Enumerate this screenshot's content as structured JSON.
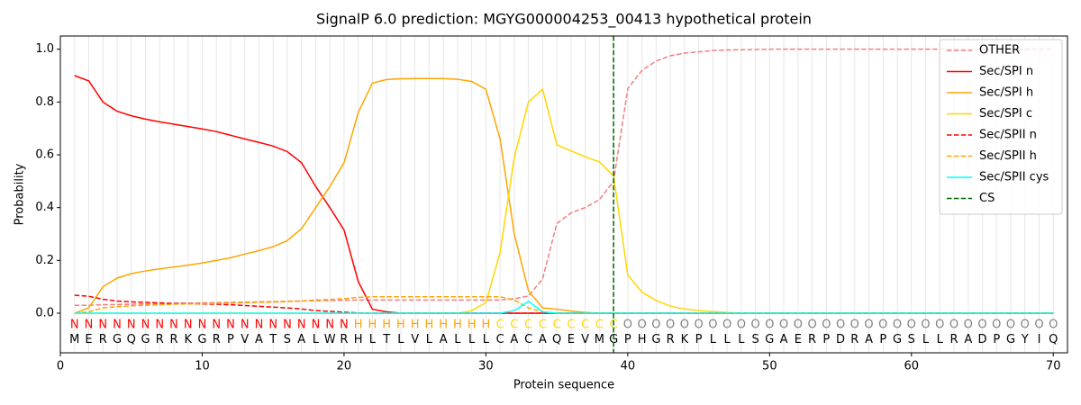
{
  "chart_data": {
    "type": "line",
    "title": "SignalP 6.0 prediction: MGYG000004253_00413 hypothetical protein",
    "xlabel": "Protein sequence",
    "ylabel": "Probability",
    "xlim": [
      0,
      71
    ],
    "ylim": [
      -0.15,
      1.05
    ],
    "xticks": [
      0,
      10,
      20,
      30,
      40,
      50,
      60,
      70
    ],
    "yticks": [
      {
        "value": 0,
        "label": "0.0"
      },
      0.2,
      0.4,
      0.6,
      0.8,
      {
        "value": 1,
        "label": "1.0"
      }
    ],
    "grid": "x-minor",
    "legend": "upper right",
    "x": [
      1,
      2,
      3,
      4,
      5,
      6,
      7,
      8,
      9,
      10,
      11,
      12,
      13,
      14,
      15,
      16,
      17,
      18,
      19,
      20,
      21,
      22,
      23,
      24,
      25,
      26,
      27,
      28,
      29,
      30,
      31,
      32,
      33,
      34,
      35,
      36,
      37,
      38,
      39,
      40,
      41,
      42,
      43,
      44,
      45,
      46,
      47,
      48,
      49,
      50,
      51,
      52,
      53,
      54,
      55,
      56,
      57,
      58,
      59,
      60,
      61,
      62,
      63,
      64,
      65,
      66,
      67,
      68,
      69,
      70
    ],
    "sequence": [
      "M",
      "E",
      "R",
      "G",
      "Q",
      "G",
      "R",
      "R",
      "K",
      "G",
      "R",
      "P",
      "V",
      "A",
      "T",
      "S",
      "A",
      "L",
      "W",
      "R",
      "H",
      "L",
      "T",
      "L",
      "V",
      "L",
      "A",
      "L",
      "L",
      "L",
      "C",
      "A",
      "C",
      "A",
      "Q",
      "E",
      "V",
      "M",
      "G",
      "P",
      "H",
      "G",
      "R",
      "K",
      "P",
      "L",
      "L",
      "L",
      "S",
      "G",
      "A",
      "E",
      "R",
      "P",
      "D",
      "R",
      "A",
      "P",
      "G",
      "S",
      "L",
      "L",
      "R",
      "A",
      "D",
      "P",
      "G",
      "Y",
      "I",
      "Q"
    ],
    "regions": [
      "N",
      "N",
      "N",
      "N",
      "N",
      "N",
      "N",
      "N",
      "N",
      "N",
      "N",
      "N",
      "N",
      "N",
      "N",
      "N",
      "N",
      "N",
      "N",
      "N",
      "H",
      "H",
      "H",
      "H",
      "H",
      "H",
      "H",
      "H",
      "H",
      "H",
      "C",
      "C",
      "C",
      "C",
      "C",
      "C",
      "C",
      "C",
      "C",
      "O",
      "O",
      "O",
      "O",
      "O",
      "O",
      "O",
      "O",
      "O",
      "O",
      "O",
      "O",
      "O",
      "O",
      "O",
      "O",
      "O",
      "O",
      "O",
      "O",
      "O",
      "O",
      "O",
      "O",
      "O",
      "O",
      "O",
      "O",
      "O",
      "O",
      "O"
    ],
    "region_colors": {
      "N": "#ff0000",
      "H": "#ffa500",
      "C": "#ffd700",
      "O": "#808080"
    },
    "series": [
      {
        "name": "OTHER",
        "color": "#f08080",
        "linestyle": "dashed",
        "values": [
          0.03,
          0.03,
          0.032,
          0.033,
          0.034,
          0.035,
          0.036,
          0.037,
          0.038,
          0.039,
          0.04,
          0.041,
          0.042,
          0.043,
          0.044,
          0.045,
          0.046,
          0.047,
          0.048,
          0.049,
          0.05,
          0.05,
          0.05,
          0.05,
          0.05,
          0.05,
          0.05,
          0.05,
          0.05,
          0.05,
          0.05,
          0.055,
          0.065,
          0.13,
          0.34,
          0.38,
          0.4,
          0.43,
          0.5,
          0.85,
          0.92,
          0.955,
          0.975,
          0.985,
          0.99,
          0.995,
          0.997,
          0.998,
          0.999,
          1,
          1,
          1,
          1,
          1,
          1,
          1,
          1,
          1,
          1,
          1,
          1,
          1,
          1,
          1,
          1,
          1,
          1,
          1,
          1,
          1
        ]
      },
      {
        "name": "Sec/SPI n",
        "color": "#ff0000",
        "linestyle": "solid",
        "values": [
          0.9,
          0.88,
          0.8,
          0.765,
          0.748,
          0.735,
          0.725,
          0.716,
          0.707,
          0.698,
          0.688,
          0.674,
          0.66,
          0.647,
          0.633,
          0.612,
          0.57,
          0.48,
          0.4,
          0.315,
          0.12,
          0.015,
          0.005,
          0,
          0,
          0,
          0,
          0,
          0,
          0,
          0,
          0,
          0,
          0,
          0,
          0,
          0,
          0,
          0,
          0,
          0,
          0,
          0,
          0,
          0,
          0,
          0,
          0,
          0,
          0,
          0,
          0,
          0,
          0,
          0,
          0,
          0,
          0,
          0,
          0,
          0,
          0,
          0,
          0,
          0,
          0,
          0,
          0,
          0,
          0
        ]
      },
      {
        "name": "Sec/SPI h",
        "color": "#ffa500",
        "linestyle": "solid",
        "values": [
          0,
          0.02,
          0.1,
          0.133,
          0.15,
          0.16,
          0.168,
          0.175,
          0.182,
          0.19,
          0.2,
          0.21,
          0.224,
          0.237,
          0.252,
          0.275,
          0.32,
          0.4,
          0.48,
          0.57,
          0.76,
          0.872,
          0.885,
          0.888,
          0.889,
          0.889,
          0.889,
          0.886,
          0.878,
          0.848,
          0.66,
          0.3,
          0.085,
          0.02,
          0.015,
          0.008,
          0.003,
          0,
          0,
          0,
          0,
          0,
          0,
          0,
          0,
          0,
          0,
          0,
          0,
          0,
          0,
          0,
          0,
          0,
          0,
          0,
          0,
          0,
          0,
          0,
          0,
          0,
          0,
          0,
          0,
          0,
          0,
          0,
          0,
          0
        ]
      },
      {
        "name": "Sec/SPI c",
        "color": "#ffd700",
        "linestyle": "solid",
        "values": [
          0,
          0,
          0,
          0,
          0,
          0,
          0,
          0,
          0,
          0,
          0,
          0,
          0,
          0,
          0,
          0,
          0,
          0,
          0,
          0,
          0,
          0,
          0,
          0,
          0,
          0,
          0,
          0,
          0.01,
          0.04,
          0.23,
          0.59,
          0.8,
          0.848,
          0.638,
          0.615,
          0.593,
          0.573,
          0.52,
          0.145,
          0.08,
          0.048,
          0.027,
          0.016,
          0.01,
          0.006,
          0.003,
          0,
          0,
          0,
          0,
          0,
          0,
          0,
          0,
          0,
          0,
          0,
          0,
          0,
          0,
          0,
          0,
          0,
          0,
          0,
          0,
          0,
          0,
          0
        ]
      },
      {
        "name": "Sec/SPII n",
        "color": "#ff0000",
        "linestyle": "dashed",
        "values": [
          0.068,
          0.064,
          0.053,
          0.046,
          0.043,
          0.041,
          0.039,
          0.037,
          0.036,
          0.035,
          0.034,
          0.032,
          0.029,
          0.026,
          0.023,
          0.02,
          0.016,
          0.01,
          0.007,
          0.004,
          0.001,
          0,
          0,
          0,
          0,
          0,
          0,
          0,
          0,
          0,
          0,
          0,
          0,
          0,
          0,
          0,
          0,
          0,
          0,
          0,
          0,
          0,
          0,
          0,
          0,
          0,
          0,
          0,
          0,
          0,
          0,
          0,
          0,
          0,
          0,
          0,
          0,
          0,
          0,
          0,
          0,
          0,
          0,
          0,
          0,
          0,
          0,
          0,
          0,
          0
        ]
      },
      {
        "name": "Sec/SPII h",
        "color": "#ffa500",
        "linestyle": "dashed",
        "values": [
          0,
          0.005,
          0.02,
          0.025,
          0.028,
          0.03,
          0.032,
          0.034,
          0.035,
          0.036,
          0.037,
          0.038,
          0.04,
          0.041,
          0.042,
          0.044,
          0.046,
          0.05,
          0.052,
          0.055,
          0.06,
          0.062,
          0.062,
          0.062,
          0.062,
          0.062,
          0.062,
          0.062,
          0.062,
          0.062,
          0.062,
          0.05,
          0.02,
          0.005,
          0,
          0,
          0,
          0,
          0,
          0,
          0,
          0,
          0,
          0,
          0,
          0,
          0,
          0,
          0,
          0,
          0,
          0,
          0,
          0,
          0,
          0,
          0,
          0,
          0,
          0,
          0,
          0,
          0,
          0,
          0,
          0,
          0,
          0,
          0,
          0
        ]
      },
      {
        "name": "Sec/SPII cys",
        "color": "#00ffff",
        "linestyle": "solid",
        "values": [
          0,
          0,
          0,
          0,
          0,
          0,
          0,
          0,
          0,
          0,
          0,
          0,
          0,
          0,
          0,
          0,
          0,
          0,
          0,
          0,
          0,
          0,
          0,
          0,
          0,
          0,
          0,
          0,
          0,
          0,
          0,
          0.01,
          0.045,
          0.005,
          0,
          0,
          0,
          0,
          0,
          0,
          0,
          0,
          0,
          0,
          0,
          0,
          0,
          0,
          0,
          0,
          0,
          0,
          0,
          0,
          0,
          0,
          0,
          0,
          0,
          0,
          0,
          0,
          0,
          0,
          0,
          0,
          0,
          0,
          0,
          0
        ]
      }
    ],
    "cs_line": {
      "name": "CS",
      "x": 39,
      "color": "#006400"
    }
  }
}
